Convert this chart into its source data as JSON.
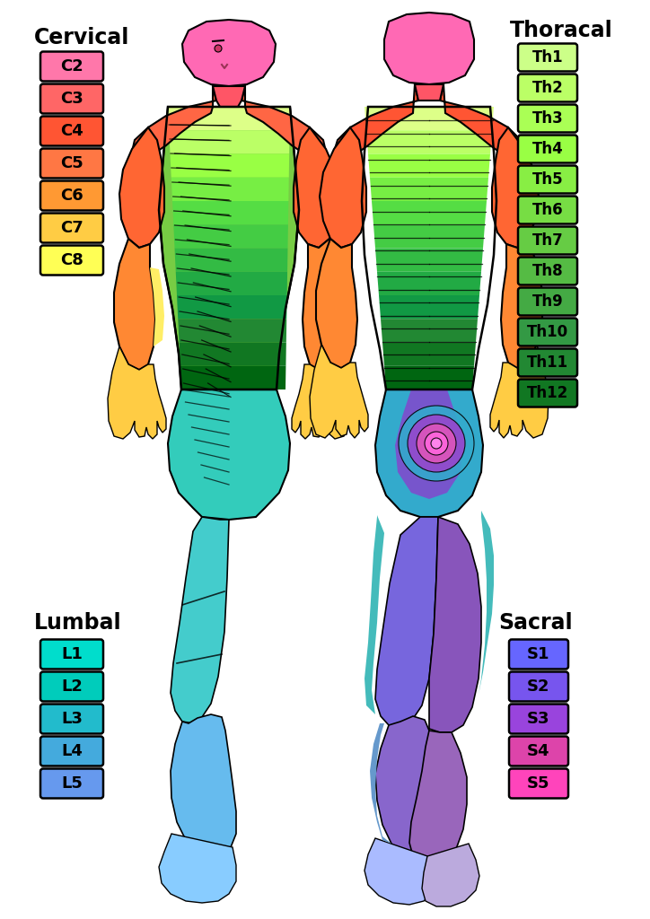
{
  "background_color": "#ffffff",
  "cervical_title": "Cervical",
  "cervical_labels": [
    "C2",
    "C3",
    "C4",
    "C5",
    "C6",
    "C7",
    "C8"
  ],
  "cervical_colors": [
    "#ff77aa",
    "#ff6666",
    "#ff5533",
    "#ff7744",
    "#ff9933",
    "#ffcc44",
    "#ffff55"
  ],
  "thoracal_title": "Thoracal",
  "thoracal_labels": [
    "Th1",
    "Th2",
    "Th3",
    "Th4",
    "Th5",
    "Th6",
    "Th7",
    "Th8",
    "Th9",
    "Th10",
    "Th11",
    "Th12"
  ],
  "thoracal_colors": [
    "#ccff88",
    "#bbff66",
    "#aaff55",
    "#99ff44",
    "#88ee44",
    "#77dd44",
    "#66cc44",
    "#55bb44",
    "#44aa44",
    "#339944",
    "#228833",
    "#117722"
  ],
  "lumbal_title": "Lumbal",
  "lumbal_labels": [
    "L1",
    "L2",
    "L3",
    "L4",
    "L5"
  ],
  "lumbal_colors": [
    "#00ddcc",
    "#00ccbb",
    "#22bbcc",
    "#44aadd",
    "#6699ee"
  ],
  "sacral_title": "Sacral",
  "sacral_labels": [
    "S1",
    "S2",
    "S3",
    "S4",
    "S5"
  ],
  "sacral_colors": [
    "#6666ff",
    "#7755ee",
    "#9944dd",
    "#dd44aa",
    "#ff44bb"
  ]
}
